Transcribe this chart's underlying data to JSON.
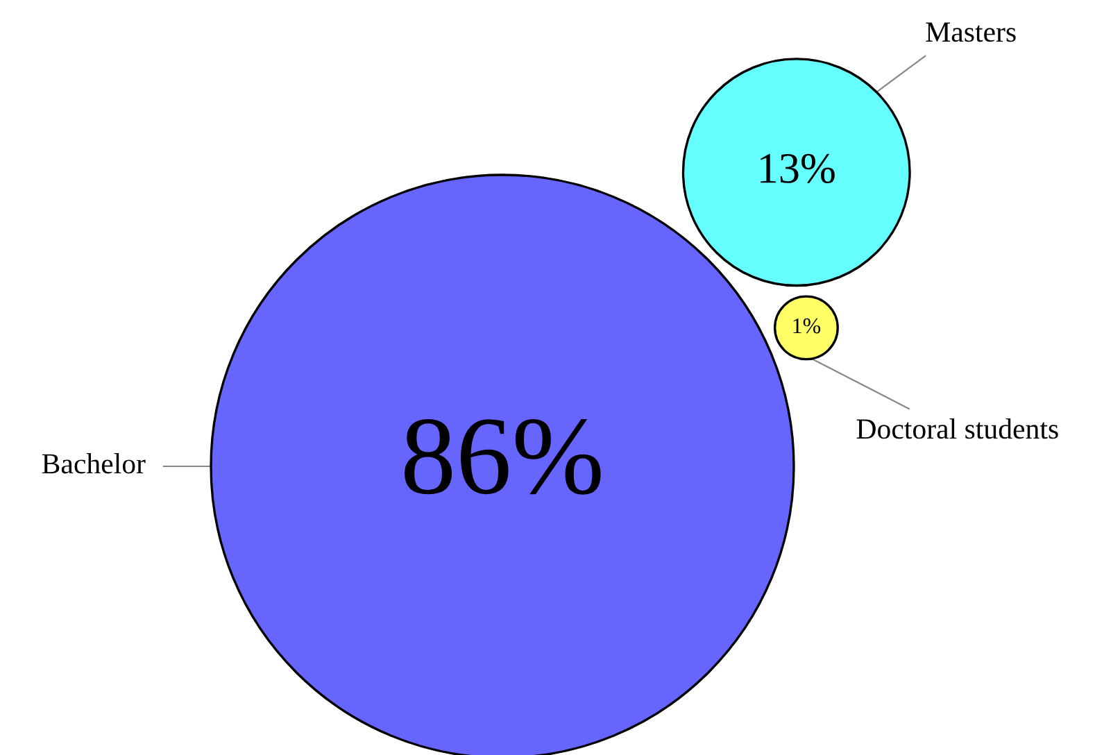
{
  "chart_data": {
    "type": "other",
    "categories": [
      "Bachelor",
      "Masters",
      "Doctoral students"
    ],
    "values": [
      86,
      13,
      1
    ],
    "value_labels": [
      "86%",
      "13%",
      "1%"
    ],
    "colors": [
      "#6666ff",
      "#66ffff",
      "#ffff66"
    ]
  }
}
